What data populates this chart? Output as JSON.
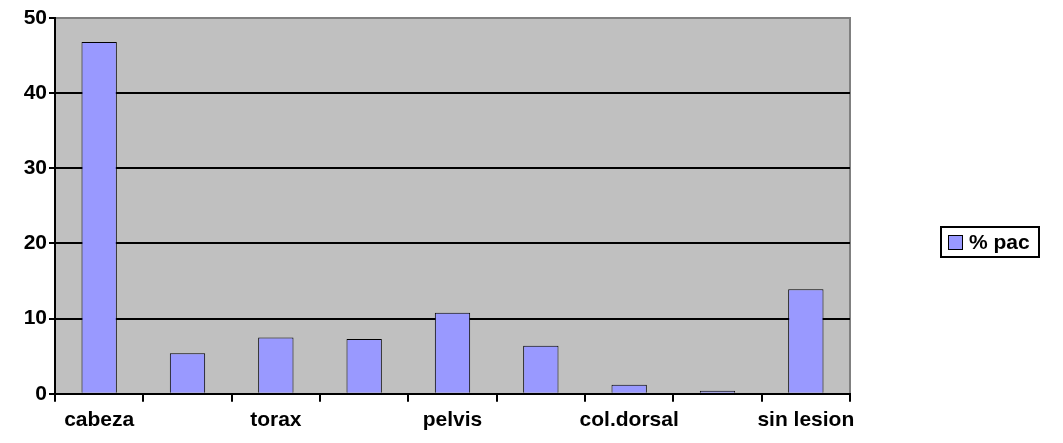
{
  "chart_data": {
    "type": "bar",
    "categories": [
      "cabeza",
      null,
      "torax",
      null,
      "pelvis",
      null,
      "col.dorsal",
      null,
      "sin lesion"
    ],
    "series": [
      {
        "name": "% pac",
        "color": "#9999ff",
        "values": [
          46.8,
          5.4,
          7.5,
          7.3,
          10.8,
          6.4,
          1.2,
          0.4,
          13.9
        ]
      }
    ],
    "ylim": [
      0,
      50
    ],
    "yticks": [
      0,
      10,
      20,
      30,
      40,
      50
    ],
    "grid": "y",
    "legend": "right"
  }
}
